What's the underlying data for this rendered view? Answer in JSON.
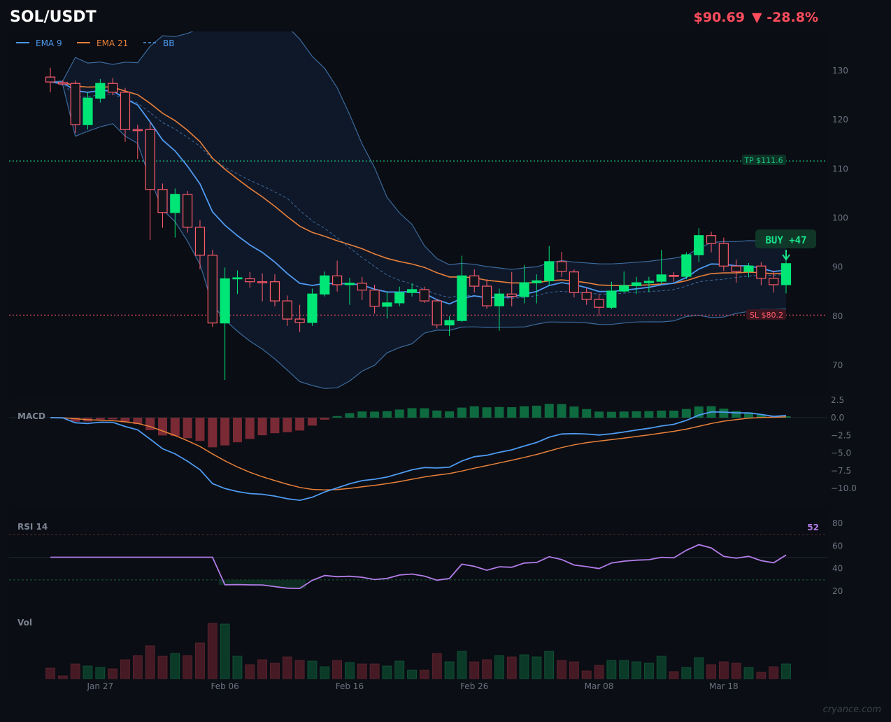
{
  "header": {
    "symbol": "SOL/USDT",
    "price": "$90.69",
    "change": "▼ -28.8%"
  },
  "colors": {
    "up": "#00e676",
    "down": "#ff5c6c",
    "ema9": "#4e9af1",
    "ema21": "#e8803a",
    "bb": "#3b6a9c",
    "rsi": "#b27ce8",
    "tp": "#19c37d",
    "sl": "#d2485a"
  },
  "legend": {
    "ema9": "EMA 9",
    "ema21": "EMA 21",
    "bb": "BB"
  },
  "annotations": {
    "tp": "TP $111.6",
    "sl": "SL $80.2",
    "buy": "BUY  +47",
    "tp_value": 111.6,
    "sl_value": 80.2
  },
  "panels": {
    "macd": "MACD",
    "rsi": "RSI 14",
    "rsi_value": "52",
    "vol": "Vol"
  },
  "watermark": "cryance.com",
  "chart_data": [
    {
      "type": "candlestick",
      "title": "SOL/USDT",
      "ylim": [
        63,
        138
      ],
      "yticks": [
        "130",
        "120",
        "110",
        "100",
        "90",
        "80",
        "70"
      ],
      "ytick_values": [
        130,
        120,
        110,
        100,
        90,
        80,
        70
      ],
      "xtick_labels": [
        "Jan 27",
        "Feb 06",
        "Feb 16",
        "Feb 26",
        "Mar 08",
        "Mar 18"
      ],
      "xtick_index": [
        4,
        14,
        24,
        34,
        44,
        54
      ],
      "ohlc": [
        [
          128.7,
          130.6,
          125.6,
          127.7
        ],
        [
          127.6,
          128,
          127,
          127.3
        ],
        [
          127.4,
          128,
          117.3,
          119.0
        ],
        [
          119,
          125.5,
          118,
          124.4
        ],
        [
          124.4,
          128.3,
          123.5,
          127.4
        ],
        [
          127.4,
          128.5,
          125,
          125.6
        ],
        [
          125.6,
          126.5,
          115.5,
          118
        ],
        [
          118,
          119,
          112,
          117.8
        ],
        [
          118,
          119.5,
          95.5,
          105.8
        ],
        [
          105.8,
          107,
          98,
          101.1
        ],
        [
          101.1,
          106,
          96,
          104.8
        ],
        [
          104.8,
          105.5,
          97,
          98.1
        ],
        [
          98.1,
          99.5,
          89.5,
          92.4
        ],
        [
          92.4,
          93.5,
          77.8,
          78.6
        ],
        [
          78.6,
          89.9,
          67,
          87.6
        ],
        [
          87.6,
          89.3,
          84.5,
          87.8
        ],
        [
          87.6,
          89,
          85.8,
          87.0
        ],
        [
          87,
          88.7,
          83,
          86.9
        ],
        [
          87,
          88.5,
          82,
          83.1
        ],
        [
          83.1,
          84.2,
          78,
          79.4
        ],
        [
          79.4,
          82.3,
          76.8,
          78.7
        ],
        [
          78.7,
          85.6,
          78,
          84.5
        ],
        [
          84.5,
          89.1,
          84,
          88.2
        ],
        [
          88.2,
          91.3,
          85,
          86.4
        ],
        [
          86.4,
          87.8,
          82.3,
          86.7
        ],
        [
          86.7,
          88,
          83.3,
          85.3
        ],
        [
          85.3,
          86.4,
          80.5,
          82
        ],
        [
          82,
          85,
          79.5,
          82.7
        ],
        [
          82.7,
          86,
          82,
          84.8
        ],
        [
          84.8,
          86.7,
          84,
          85.4
        ],
        [
          85.4,
          86,
          82.7,
          83.1
        ],
        [
          83.1,
          83.5,
          77.5,
          78.2
        ],
        [
          78.2,
          80,
          76,
          79.1
        ],
        [
          79.1,
          92.3,
          78.8,
          88.2
        ],
        [
          88.2,
          89.5,
          84.8,
          86.1
        ],
        [
          86.1,
          87.5,
          81.5,
          82.1
        ],
        [
          82.1,
          85.6,
          77,
          84.5
        ],
        [
          84.5,
          89,
          82,
          84
        ],
        [
          84,
          90.4,
          82.6,
          86.8
        ],
        [
          86.8,
          88.5,
          82.6,
          87.2
        ],
        [
          87.2,
          94.3,
          86.2,
          91.1
        ],
        [
          91.1,
          93.1,
          88,
          89.1
        ],
        [
          89,
          89.5,
          83.8,
          84.8
        ],
        [
          84.8,
          85.7,
          82.3,
          83.4
        ],
        [
          83.4,
          84.5,
          80,
          81.8
        ],
        [
          81.8,
          87,
          81.4,
          85.1
        ],
        [
          85.1,
          89.1,
          84.8,
          86.2
        ],
        [
          86.2,
          88,
          84.5,
          86.8
        ],
        [
          86.8,
          88,
          84.9,
          87.1
        ],
        [
          87.1,
          93.5,
          86.5,
          88.4
        ],
        [
          88.3,
          89,
          87,
          88.1
        ],
        [
          88.1,
          93,
          87.5,
          92.5
        ],
        [
          92.5,
          97.9,
          91,
          96.4
        ],
        [
          96.4,
          97.2,
          93,
          94.8
        ],
        [
          94.8,
          96,
          89.2,
          90.2
        ],
        [
          90.2,
          91.5,
          86.8,
          89.1
        ],
        [
          89.1,
          90.8,
          87.9,
          90.2
        ],
        [
          90.2,
          91,
          86.3,
          87.7
        ],
        [
          87.7,
          89.3,
          84.8,
          86.4
        ],
        [
          86.4,
          91.7,
          84.6,
          90.69
        ]
      ]
    },
    {
      "type": "bar",
      "title": "MACD",
      "ylim": [
        -12.5,
        3.5
      ],
      "yticks": [
        "2.5",
        "0.0",
        "−2.5",
        "−5.0",
        "−7.5",
        "−10.0"
      ],
      "ytick_values": [
        2.5,
        0,
        -2.5,
        -5,
        -7.5,
        -10
      ]
    },
    {
      "type": "line",
      "title": "RSI 14",
      "ylim": [
        10,
        85
      ],
      "yticks": [
        "80",
        "60",
        "40",
        "20"
      ],
      "ytick_values": [
        80,
        60,
        40,
        20
      ],
      "levels": [
        70,
        50,
        30
      ]
    },
    {
      "type": "bar",
      "title": "Vol",
      "ylim": [
        0,
        85
      ],
      "values": [
        15,
        4,
        21,
        18,
        16,
        14,
        27,
        33,
        47,
        32,
        36,
        33,
        51,
        79,
        78,
        32,
        20,
        27,
        22,
        31,
        26,
        25,
        17,
        26,
        23,
        21,
        21,
        18,
        25,
        12,
        12,
        36,
        24,
        39,
        24,
        27,
        33,
        31,
        34,
        31,
        39,
        26,
        24,
        11,
        19,
        26,
        26,
        24,
        22,
        32,
        10,
        16,
        30,
        20,
        24,
        22,
        16,
        9,
        17,
        21
      ]
    }
  ]
}
